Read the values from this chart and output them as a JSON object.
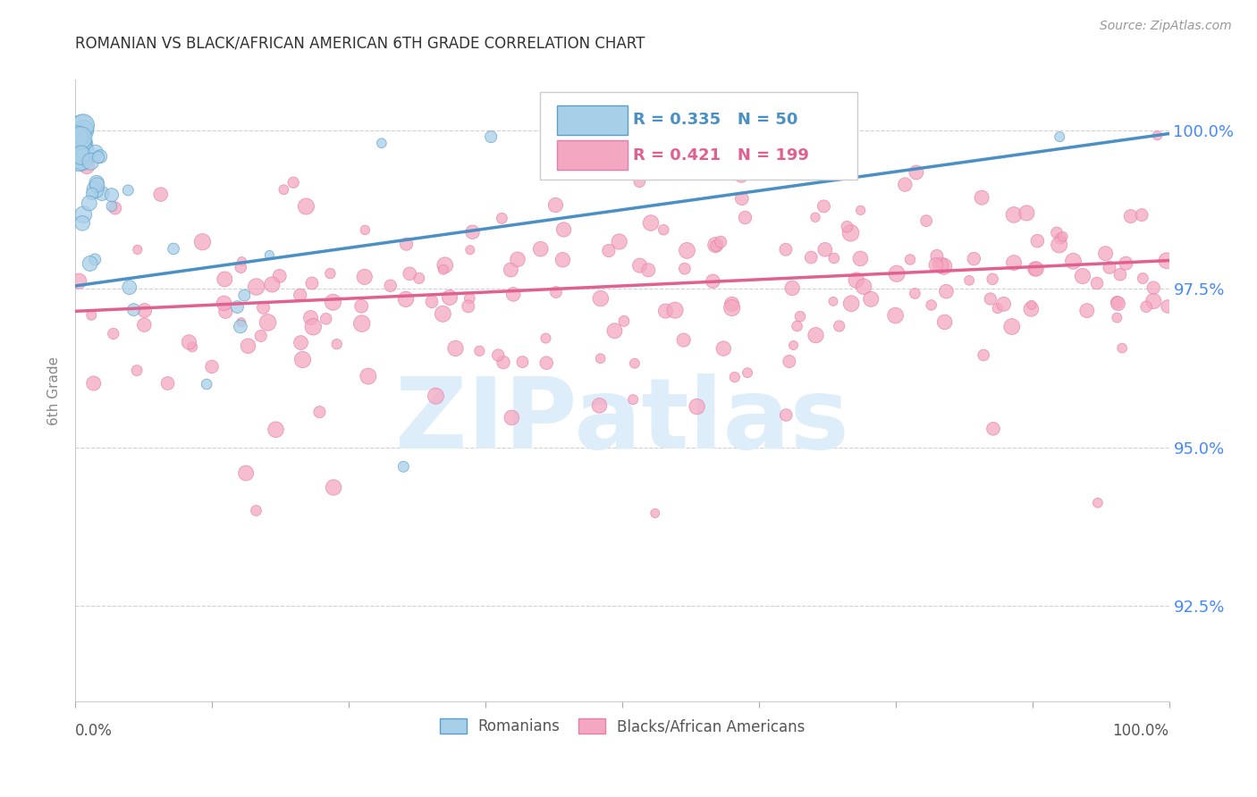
{
  "title": "ROMANIAN VS BLACK/AFRICAN AMERICAN 6TH GRADE CORRELATION CHART",
  "source": "Source: ZipAtlas.com",
  "ylabel": "6th Grade",
  "yaxis_labels": [
    "100.0%",
    "97.5%",
    "95.0%",
    "92.5%"
  ],
  "yaxis_values": [
    1.0,
    0.975,
    0.95,
    0.925
  ],
  "xlim": [
    0.0,
    1.0
  ],
  "ylim": [
    0.91,
    1.008
  ],
  "legend_blue_r": "0.335",
  "legend_blue_n": "50",
  "legend_pink_r": "0.421",
  "legend_pink_n": "199",
  "blue_fill_color": "#a8cfe8",
  "pink_fill_color": "#f4a7c0",
  "blue_edge_color": "#5b9ec9",
  "pink_edge_color": "#e87daa",
  "blue_line_color": "#4a90c4",
  "pink_line_color": "#e06090",
  "blue_trend_y_start": 0.9755,
  "blue_trend_y_end": 0.9995,
  "pink_trend_y_start": 0.9715,
  "pink_trend_y_end": 0.9795,
  "watermark_color": "#ddeefa",
  "background_color": "#ffffff",
  "grid_color": "#d0d0d0",
  "right_label_color": "#4488ff",
  "source_color": "#999999",
  "title_color": "#333333",
  "ylabel_color": "#888888",
  "bottom_label_color": "#555555"
}
